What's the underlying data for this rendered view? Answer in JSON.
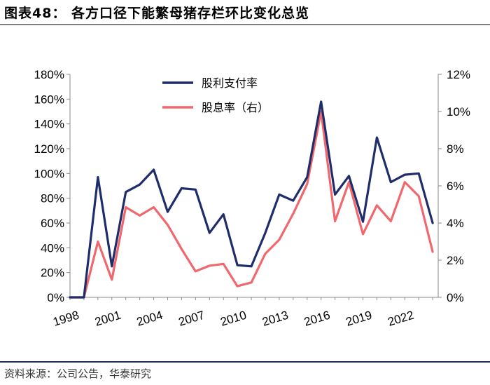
{
  "header": {
    "title": "图表48： 各方口径下能繁母猪存栏环比变化总览"
  },
  "footer": {
    "source": "资料来源：公司公告，华泰研究"
  },
  "chart_data": {
    "type": "line",
    "x": [
      1998,
      1999,
      2000,
      2001,
      2002,
      2003,
      2004,
      2005,
      2006,
      2007,
      2008,
      2009,
      2010,
      2011,
      2012,
      2013,
      2014,
      2015,
      2016,
      2017,
      2018,
      2019,
      2020,
      2021,
      2022,
      2023,
      2024
    ],
    "x_ticks": [
      "1998",
      "2001",
      "2004",
      "2007",
      "2010",
      "2013",
      "2016",
      "2019",
      "2022"
    ],
    "y_ticks": [
      "0%",
      "20%",
      "40%",
      "60%",
      "80%",
      "100%",
      "120%",
      "140%",
      "160%",
      "180%"
    ],
    "y2_ticks": [
      "0%",
      "2%",
      "4%",
      "6%",
      "8%",
      "10%",
      "12%"
    ],
    "ylim": [
      0,
      180
    ],
    "y2lim": [
      0,
      12
    ],
    "legend_position": "top-left",
    "series": [
      {
        "name": "股利支付率",
        "axis": "left",
        "color": "#1f2d6b",
        "values": [
          0,
          0,
          97,
          25,
          85,
          91,
          103,
          69,
          88,
          87,
          52,
          67,
          26,
          25,
          52,
          83,
          78,
          97,
          158,
          83,
          98,
          61,
          129,
          93,
          99,
          100,
          60
        ]
      },
      {
        "name": "股息率（右）",
        "axis": "right",
        "color": "#f0676d",
        "values": [
          0,
          0,
          3.0,
          0.95,
          4.85,
          4.4,
          4.85,
          3.9,
          2.6,
          1.4,
          1.7,
          1.8,
          0.6,
          0.8,
          2.35,
          3.1,
          4.5,
          6.1,
          10.0,
          4.1,
          6.2,
          3.4,
          4.95,
          4.1,
          6.2,
          5.45,
          2.45
        ]
      }
    ]
  }
}
